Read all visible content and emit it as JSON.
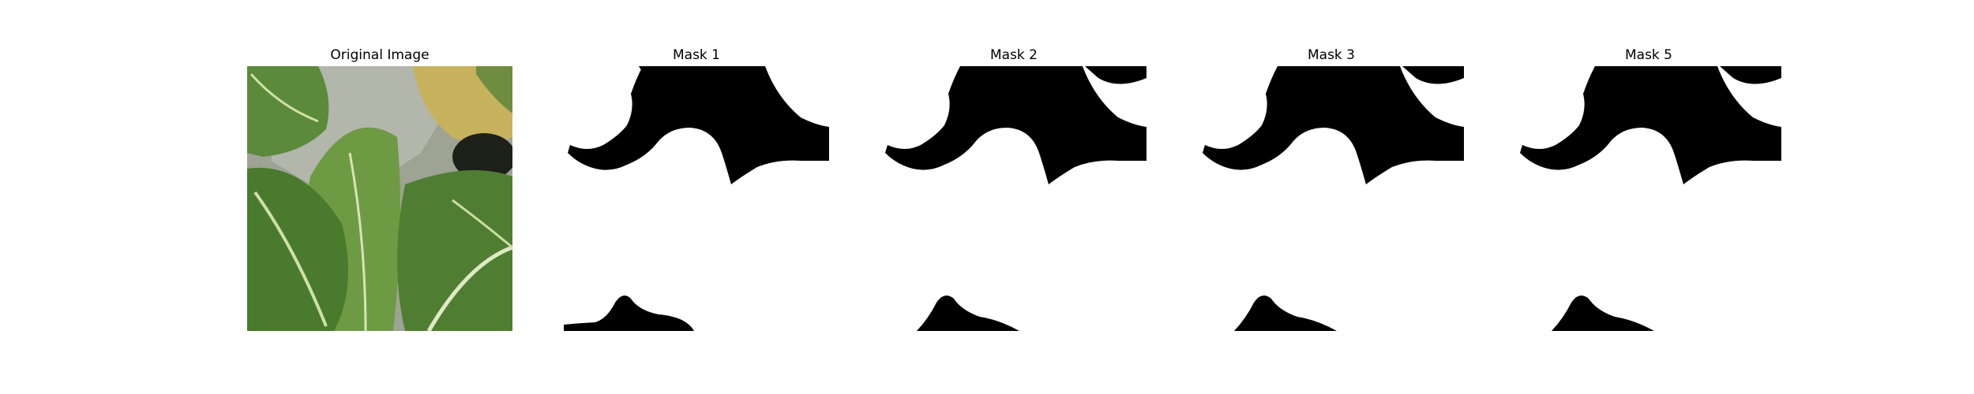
{
  "figure": {
    "panels": [
      {
        "title": "Original Image",
        "kind": "photo",
        "icon": "leaf-photo"
      },
      {
        "title": "Mask 1",
        "kind": "mask"
      },
      {
        "title": "Mask 2",
        "kind": "mask"
      },
      {
        "title": "Mask 3",
        "kind": "mask"
      },
      {
        "title": "Mask 5",
        "kind": "mask"
      }
    ],
    "colors": {
      "mask_foreground": "#ffffff",
      "mask_background": "#000000",
      "leaf_dark": "#3f6b2a",
      "leaf_mid": "#5f8a3c",
      "leaf_light": "#8fae5a",
      "wall_gray": "#a9aca1",
      "yellow_leaf": "#c8b25a"
    }
  }
}
